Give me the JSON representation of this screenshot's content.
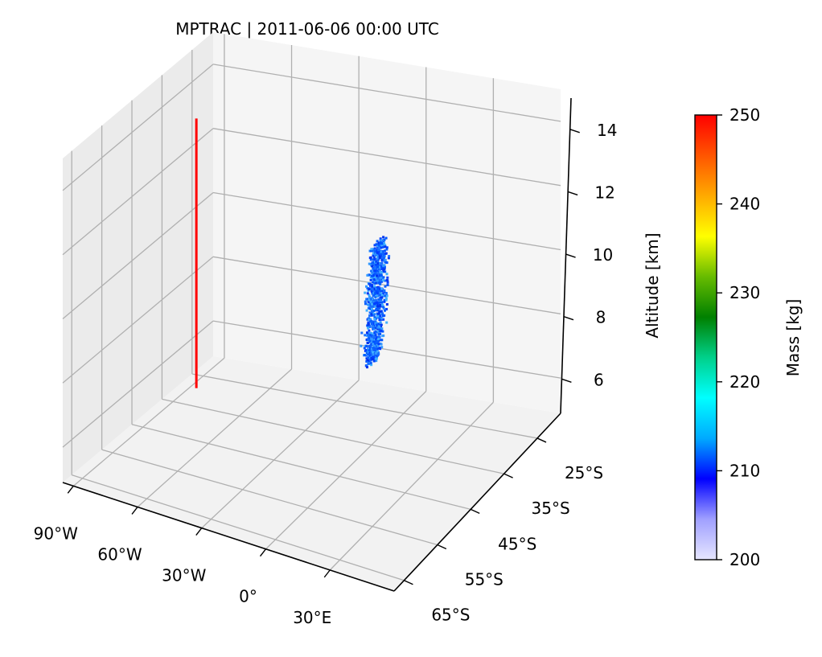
{
  "chart_data": {
    "type": "scatter",
    "title": "MPTRAC | 2011-06-06 00:00 UTC",
    "xlabel": "",
    "ylabel": "",
    "zlabel": "Altitude [km]",
    "x_tick_labels": [
      "90°W",
      "60°W",
      "30°W",
      "0°",
      "30°E"
    ],
    "x_ticks": [
      -90,
      -60,
      -30,
      0,
      30
    ],
    "xlim": [
      -95,
      60
    ],
    "y_tick_labels": [
      "65°S",
      "55°S",
      "45°S",
      "35°S",
      "25°S"
    ],
    "y_ticks": [
      -65,
      -55,
      -45,
      -35,
      -25
    ],
    "ylim": [
      -68,
      -18
    ],
    "z_tick_labels": [
      "6",
      "8",
      "10",
      "12",
      "14"
    ],
    "z_ticks": [
      6,
      8,
      10,
      12,
      14
    ],
    "zlim": [
      4.9,
      15
    ],
    "grid": true,
    "colorbar": {
      "label": "Mass [kg]",
      "range": [
        200,
        250
      ],
      "tick_labels": [
        "200",
        "210",
        "220",
        "230",
        "240",
        "250"
      ],
      "colors": [
        "#e6e6ff",
        "#a0a0ff",
        "#0000ff",
        "#00aaff",
        "#00ffff",
        "#00d08a",
        "#008000",
        "#66bb00",
        "#ffff00",
        "#ffaa00",
        "#ff5500",
        "#ff0000"
      ]
    },
    "series": [
      {
        "type": "line",
        "color": "#ff0000",
        "points": [
          {
            "lon": -72.5,
            "lat": -40,
            "alt": 6.0
          },
          {
            "lon": -72.5,
            "lat": -40,
            "alt": 14.4
          }
        ]
      },
      {
        "type": "particle-cloud",
        "color": "#0050ff",
        "mass_range": [
          208,
          215
        ],
        "center": {
          "lon": -5,
          "lat": -26,
          "alt": 8.3
        },
        "lon_spread": 6,
        "lat_spread": 2.5,
        "alt_range": [
          6.5,
          10.5
        ]
      }
    ]
  }
}
